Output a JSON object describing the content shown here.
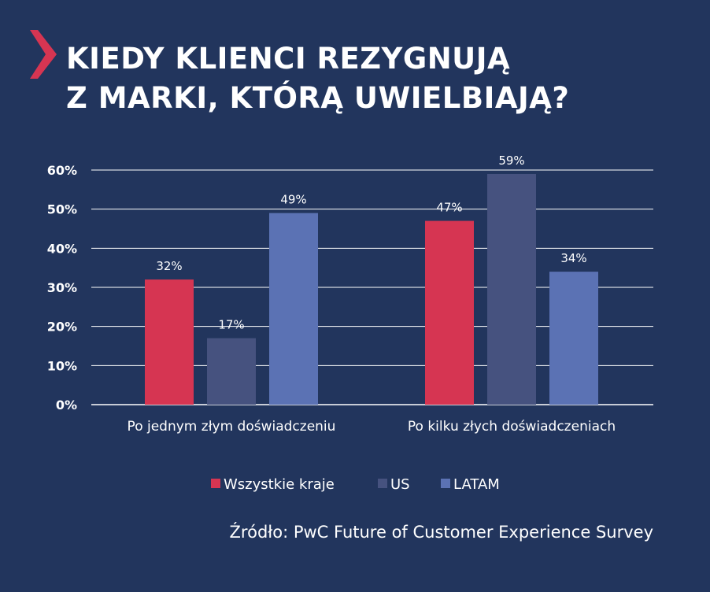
{
  "title_lines": [
    "KIEDY KLIENCI REZYGNUJĄ",
    "Z MARKI, KTÓRĄ UWIELBIAJĄ?"
  ],
  "source": "Źródło: PwC Future of Customer Experience Survey",
  "colors": {
    "background": "#22355d",
    "accent": "#d63552"
  },
  "chart_data": {
    "type": "bar",
    "categories": [
      "Po jednym złym doświadczeniu",
      "Po kilku złych doświadczeniach"
    ],
    "series": [
      {
        "name": "Wszystkie kraje",
        "values": [
          32,
          47
        ],
        "color": "#d63552"
      },
      {
        "name": "US",
        "values": [
          17,
          59
        ],
        "color": "#46527f"
      },
      {
        "name": "LATAM",
        "values": [
          49,
          34
        ],
        "color": "#5b72b4"
      }
    ],
    "ylim": [
      0,
      60
    ],
    "yticks": [
      "0%",
      "10%",
      "20%",
      "30%",
      "40%",
      "50%",
      "60%"
    ],
    "value_suffix": "%",
    "grid": true,
    "legend": "bottom"
  }
}
